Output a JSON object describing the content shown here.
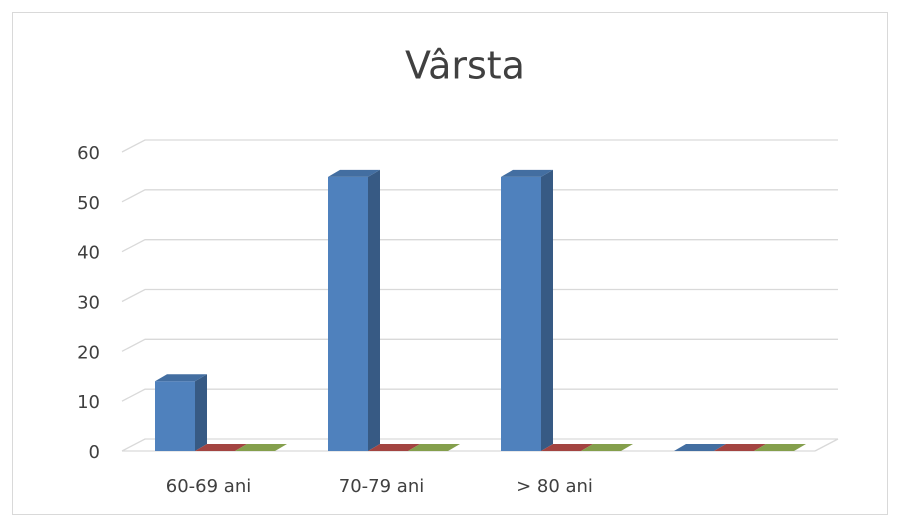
{
  "chart_data": {
    "type": "bar3d",
    "title": "Vârsta",
    "categories": [
      "60-69 ani",
      "70-79 ani",
      "> 80 ani",
      null
    ],
    "series": [
      {
        "color": "#4f81bd",
        "values": [
          14,
          55,
          55,
          0
        ]
      },
      {
        "color": "#c0504d",
        "values": [
          0,
          0,
          0,
          0
        ]
      },
      {
        "color": "#9bbb59",
        "values": [
          0,
          0,
          0,
          0
        ]
      }
    ],
    "ylim": [
      0,
      60
    ],
    "yticks": [
      0,
      10,
      20,
      30,
      40,
      50,
      60
    ],
    "grid": true
  }
}
